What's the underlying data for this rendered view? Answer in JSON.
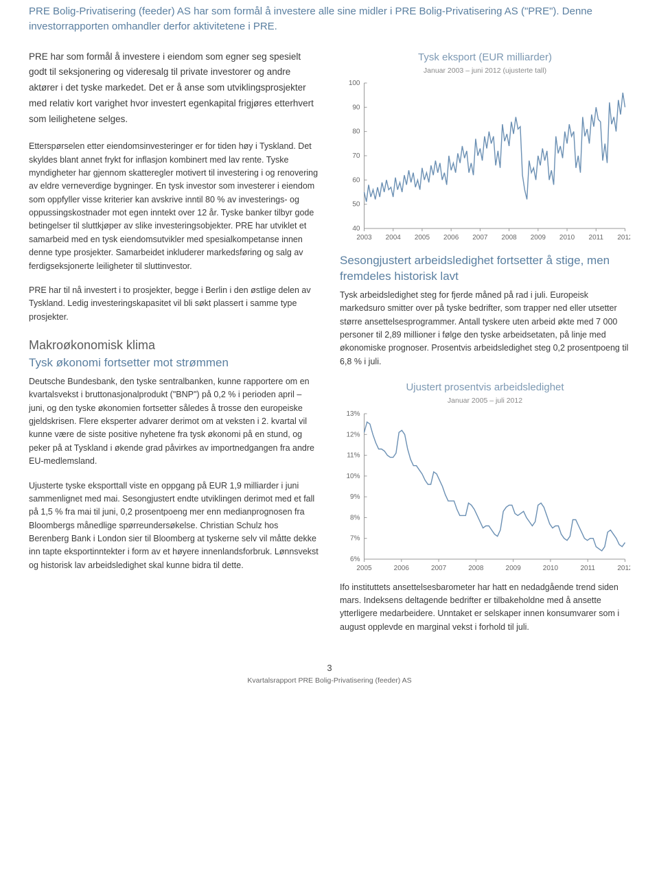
{
  "intro": "PRE Bolig-Privatisering (feeder) AS har som formål å investere alle sine midler i PRE Bolig-Privatisering AS (\"PRE\"). Denne investorrapporten omhandler derfor aktivitetene i PRE.",
  "left": {
    "lead": "PRE har som formål å investere i eiendom som egner seg spesielt godt til seksjonering og videresalg til private investorer og andre aktører i det tyske markedet. Det er å anse som utviklingsprosjekter med relativ kort varighet hvor investert egenkapital frigjøres etterhvert som leilighetene selges.",
    "p2": "Etterspørselen etter eiendomsinvesteringer er for tiden høy i Tyskland. Det skyldes blant annet frykt for inflasjon kombinert med lav rente. Tyske myndigheter har gjennom skatteregler motivert til investering i og renovering av eldre verneverdige bygninger. En tysk investor som investerer i eiendom som oppfyller visse kriterier kan avskrive inntil 80 % av investerings- og oppussingskostnader mot egen inntekt over 12 år. Tyske banker tilbyr gode betingelser til sluttkjøper av slike investeringsobjekter. PRE har utviklet et samarbeid med en tysk eiendomsutvikler med spesialkompetanse innen denne type prosjekter. Samarbeidet inkluderer markedsføring og salg av ferdigseksjonerte leiligheter til sluttinvestor.",
    "p3": "PRE har til nå investert i to prosjekter, begge i Berlin i den østlige delen av Tyskland. Ledig investeringskapasitet vil bli søkt plassert i samme type prosjekter.",
    "h2a": "Makroøkonomisk klima",
    "h2a_sub": "Tysk økonomi fortsetter mot strømmen",
    "p4": "Deutsche Bundesbank, den tyske sentralbanken, kunne rapportere om en kvartalsvekst i bruttonasjonalprodukt (\"BNP\") på 0,2 % i perioden april – juni, og den tyske økonomien fortsetter således å trosse den europeiske gjeldskrisen. Flere eksperter advarer derimot om at veksten i 2. kvartal vil kunne være de siste positive nyhetene fra tysk økonomi på en stund, og peker på at Tyskland i økende grad påvirkes av importnedgangen fra andre EU-medlemsland.",
    "p5": "Ujusterte tyske eksporttall viste en oppgang på EUR 1,9 milliarder i juni sammenlignet med mai. Sesongjustert endte utviklingen derimot med et fall på 1,5 % fra mai til juni, 0,2 prosentpoeng mer enn medianprognosen fra Bloombergs månedlige spørreundersøkelse. Christian Schulz hos Berenberg Bank i London sier til Bloomberg at tyskerne selv vil måtte dekke inn tapte eksportinntekter i form av et høyere innenlandsforbruk. Lønnsvekst og historisk lav arbeidsledighet skal kunne bidra til dette."
  },
  "right": {
    "chart1": {
      "title": "Tysk eksport (EUR milliarder)",
      "subtitle": "Januar 2003 – juni 2012 (ujusterte tall)",
      "type": "line",
      "ylim": [
        40,
        100
      ],
      "ytick_step": 10,
      "xlabels": [
        "2003",
        "2004",
        "2005",
        "2006",
        "2007",
        "2008",
        "2009",
        "2010",
        "2011",
        "2012"
      ],
      "line_color": "#6a8fb3",
      "grid_color": "#d8d8d8",
      "axis_color": "#999999",
      "text_color": "#666666",
      "values": [
        55,
        51,
        58,
        53,
        56,
        52,
        57,
        53,
        59,
        55,
        60,
        56,
        57,
        53,
        61,
        56,
        59,
        55,
        62,
        58,
        64,
        59,
        63,
        57,
        60,
        56,
        65,
        60,
        63,
        59,
        66,
        62,
        68,
        63,
        67,
        60,
        63,
        58,
        70,
        64,
        67,
        63,
        71,
        67,
        74,
        69,
        72,
        63,
        67,
        62,
        77,
        70,
        73,
        68,
        78,
        73,
        80,
        75,
        78,
        66,
        72,
        65,
        83,
        76,
        79,
        74,
        84,
        79,
        86,
        81,
        82,
        62,
        56,
        52,
        68,
        63,
        65,
        60,
        70,
        66,
        73,
        68,
        72,
        60,
        64,
        58,
        78,
        71,
        74,
        69,
        80,
        75,
        83,
        78,
        80,
        65,
        70,
        63,
        86,
        78,
        81,
        75,
        87,
        82,
        90,
        85,
        84,
        68,
        75,
        67,
        92,
        83,
        86,
        80,
        93,
        87,
        96,
        90
      ]
    },
    "h2b_sub": "Sesongjustert arbeidsledighet fortsetter å stige, men fremdeles historisk lavt",
    "p6": "Tysk arbeidsledighet steg for fjerde måned på rad i juli. Europeisk markedsuro smitter over på tyske bedrifter, som trapper ned eller utsetter større ansettelsesprogrammer. Antall tyskere uten arbeid økte med 7 000 personer til 2,89 millioner i følge den tyske arbeidsetaten, på linje med økonomiske prognoser. Prosentvis arbeidsledighet steg 0,2 prosentpoeng til 6,8 % i juli.",
    "chart2": {
      "title": "Ujustert prosentvis arbeidsledighet",
      "subtitle": "Januar 2005 – juli 2012",
      "type": "line",
      "ylim": [
        6,
        13
      ],
      "ytick_step": 1,
      "y_suffix": "%",
      "xlabels": [
        "2005",
        "2006",
        "2007",
        "2008",
        "2009",
        "2010",
        "2011",
        "2012"
      ],
      "line_color": "#6a8fb3",
      "grid_color": "#d8d8d8",
      "axis_color": "#999999",
      "text_color": "#666666",
      "values": [
        12.1,
        12.6,
        12.5,
        12.0,
        11.6,
        11.3,
        11.3,
        11.2,
        11.0,
        10.9,
        10.9,
        11.1,
        12.1,
        12.2,
        12.0,
        11.3,
        10.8,
        10.5,
        10.5,
        10.3,
        10.1,
        9.8,
        9.6,
        9.6,
        10.2,
        10.1,
        9.8,
        9.5,
        9.1,
        8.8,
        8.8,
        8.8,
        8.4,
        8.1,
        8.1,
        8.1,
        8.7,
        8.6,
        8.4,
        8.1,
        7.8,
        7.5,
        7.6,
        7.6,
        7.4,
        7.2,
        7.1,
        7.4,
        8.3,
        8.5,
        8.6,
        8.6,
        8.2,
        8.1,
        8.2,
        8.3,
        8.0,
        7.8,
        7.6,
        7.8,
        8.6,
        8.7,
        8.5,
        8.1,
        7.7,
        7.5,
        7.6,
        7.6,
        7.2,
        7.0,
        6.9,
        7.1,
        7.9,
        7.9,
        7.6,
        7.3,
        7.0,
        6.9,
        7.0,
        7.0,
        6.6,
        6.5,
        6.4,
        6.6,
        7.3,
        7.4,
        7.2,
        7.0,
        6.7,
        6.6,
        6.8
      ]
    },
    "p7": "Ifo instituttets ansettelsesbarometer har hatt en nedadgående trend siden mars. Indeksens deltagende bedrifter er tilbakeholdne med å ansette ytterligere medarbeidere. Unntaket er selskaper innen konsumvarer som i august opplevde en marginal vekst i forhold til juli."
  },
  "footer": {
    "page": "3",
    "doc": "Kvartalsrapport PRE Bolig-Privatisering (feeder) AS"
  }
}
